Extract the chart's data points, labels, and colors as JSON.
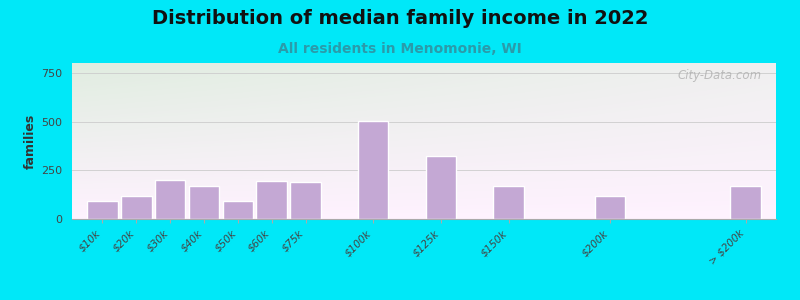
{
  "title": "Distribution of median family income in 2022",
  "subtitle": "All residents in Menomonie, WI",
  "categories": [
    "$10k",
    "$20k",
    "$30k",
    "$40k",
    "$50k",
    "$60k",
    "$75k",
    "$100k",
    "$125k",
    "$150k",
    "$200k",
    "> $200k"
  ],
  "values": [
    90,
    120,
    200,
    170,
    90,
    195,
    190,
    505,
    325,
    170,
    120,
    170
  ],
  "bar_color": "#c4a8d4",
  "bar_edge_color": "#ffffff",
  "ylabel": "families",
  "ylim": [
    0,
    800
  ],
  "yticks": [
    0,
    250,
    500,
    750
  ],
  "bg_outer": "#00e8f8",
  "bg_plot_top_left": "#d8edcc",
  "bg_plot_right": "#f0f0f0",
  "title_fontsize": 14,
  "subtitle_fontsize": 10,
  "subtitle_color": "#2a9baa",
  "watermark": "City-Data.com",
  "grid_color": "#cccccc",
  "x_positions": [
    0,
    1,
    2,
    3,
    4,
    5,
    6,
    8,
    10,
    12,
    15,
    19
  ],
  "bar_width": 0.9
}
